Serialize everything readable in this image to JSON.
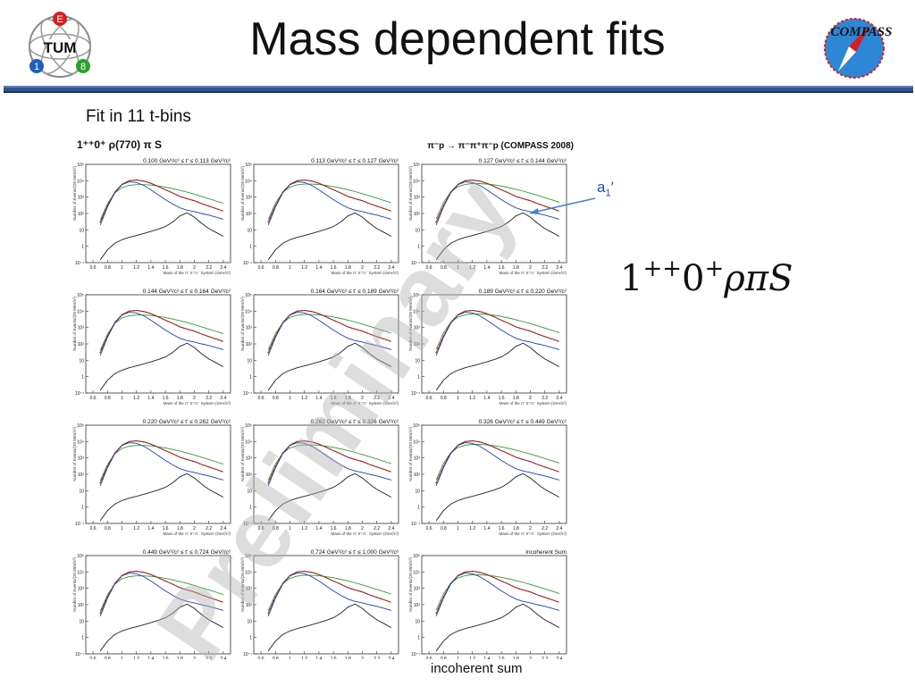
{
  "slide": {
    "title": "Mass dependent fits",
    "subtitle": "Fit in 11 t-bins",
    "formula": {
      "base": "1",
      "sup": "++",
      "mid": "0",
      "sup2": "+",
      "tail": "ρπS"
    },
    "arrow_label": {
      "main": "a",
      "sub": "1",
      "prime": "′"
    },
    "footer_note": "incoherent sum",
    "watermark": "Preliminary",
    "logos": {
      "left": "TUM",
      "right": "COMPASS",
      "left_badges": [
        "E",
        "1",
        "8"
      ]
    }
  },
  "colors": {
    "accent_bar": "#2f5597",
    "data": "#8b0000",
    "red": "#d62020",
    "green": "#2ca02c",
    "blue": "#1f3fbf",
    "black": "#222222"
  },
  "chart_data": {
    "type": "line",
    "header_left": "1⁺⁺0⁺ ρ(770) π S",
    "header_right": "π⁻p → π⁻π⁺π⁻p (COMPASS 2008)",
    "xlabel": "Mass of the π⁻π⁺π⁻ System (GeV/c²)",
    "ylabel": "Number of Events/(20 MeV/c²)",
    "xlim": [
      0.5,
      2.5
    ],
    "ylog": true,
    "ylim": [
      0.1,
      100000
    ],
    "x_ticks": [
      "0.6",
      "0.8",
      "1",
      "1.2",
      "1.4",
      "1.6",
      "1.8",
      "2",
      "2.2",
      "2.4"
    ],
    "y_ticks": [
      "10⁻¹",
      "1",
      "10",
      "10²",
      "10³",
      "10⁴",
      "10⁵"
    ],
    "panels": [
      {
        "label": "0.100 GeV²/c² ≤ t' ≤ 0.113 GeV²/c²"
      },
      {
        "label": "0.113 GeV²/c² ≤ t' ≤ 0.127 GeV²/c²"
      },
      {
        "label": "0.127 GeV²/c² ≤ t' ≤ 0.144 GeV²/c²"
      },
      {
        "label": "0.144 GeV²/c² ≤ t' ≤ 0.164 GeV²/c²"
      },
      {
        "label": "0.164 GeV²/c² ≤ t' ≤ 0.189 GeV²/c²"
      },
      {
        "label": "0.189 GeV²/c² ≤ t' ≤ 0.220 GeV²/c²"
      },
      {
        "label": "0.220 GeV²/c² ≤ t' ≤ 0.262 GeV²/c²"
      },
      {
        "label": "0.262 GeV²/c² ≤ t' ≤ 0.326 GeV²/c²"
      },
      {
        "label": "0.326 GeV²/c² ≤ t' ≤ 0.449 GeV²/c²"
      },
      {
        "label": "0.449 GeV²/c² ≤ t' ≤ 0.724 GeV²/c²"
      },
      {
        "label": "0.724 GeV²/c² ≤ t' ≤ 1.000 GeV²/c²"
      },
      {
        "label": "Incoherent Sum"
      }
    ],
    "series": [
      {
        "name": "total",
        "color": "#d62020",
        "x": [
          0.7,
          0.8,
          0.9,
          1.0,
          1.1,
          1.2,
          1.3,
          1.4,
          1.5,
          1.6,
          1.7,
          1.8,
          1.9,
          2.0,
          2.1,
          2.2,
          2.3,
          2.4
        ],
        "y": [
          30,
          300,
          2000,
          6000,
          10000,
          11000,
          9500,
          7000,
          4500,
          2800,
          1800,
          1100,
          800,
          600,
          400,
          280,
          200,
          140
        ]
      },
      {
        "name": "background",
        "color": "#2ca02c",
        "x": [
          0.7,
          0.8,
          0.9,
          1.0,
          1.1,
          1.2,
          1.3,
          1.4,
          1.5,
          1.6,
          1.7,
          1.8,
          1.9,
          2.0,
          2.1,
          2.2,
          2.3,
          2.4
        ],
        "y": [
          40,
          400,
          1800,
          3800,
          5200,
          5800,
          5800,
          5400,
          4800,
          4100,
          3300,
          2600,
          2000,
          1500,
          1100,
          800,
          580,
          420
        ]
      },
      {
        "name": "a1 resonance",
        "color": "#1f3fbf",
        "x": [
          0.7,
          0.8,
          0.9,
          1.0,
          1.1,
          1.2,
          1.3,
          1.4,
          1.5,
          1.6,
          1.7,
          1.8,
          1.9,
          2.0,
          2.1,
          2.2,
          2.3,
          2.4
        ],
        "y": [
          20,
          250,
          1800,
          5800,
          8500,
          7800,
          5200,
          2800,
          1400,
          700,
          380,
          220,
          160,
          130,
          100,
          80,
          60,
          45
        ]
      },
      {
        "name": "a1' resonance",
        "color": "#222222",
        "x": [
          0.7,
          0.8,
          0.9,
          1.0,
          1.1,
          1.2,
          1.3,
          1.4,
          1.5,
          1.6,
          1.7,
          1.8,
          1.9,
          2.0,
          2.1,
          2.2,
          2.3,
          2.4
        ],
        "y": [
          0.15,
          0.6,
          1.5,
          2.5,
          3.5,
          4.5,
          6,
          8,
          11,
          16,
          30,
          70,
          110,
          60,
          25,
          12,
          7,
          4
        ]
      }
    ]
  }
}
